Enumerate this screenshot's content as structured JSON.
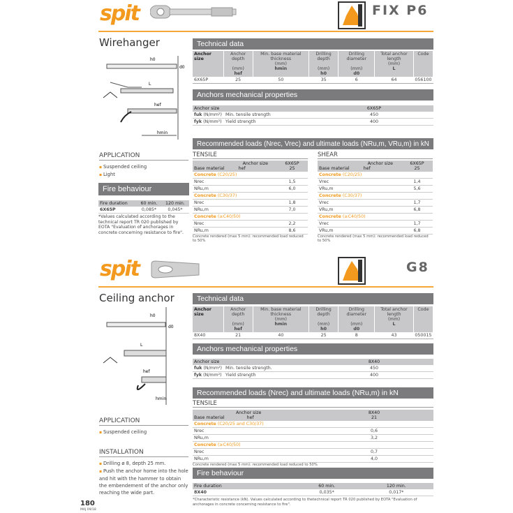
{
  "page_number": "180",
  "edition": "MAJ 09/18",
  "brand": "spit",
  "colors": {
    "accent": "#f39a1e",
    "bar": "#7b7b7d",
    "header_row": "#c8c8ca"
  },
  "products": [
    {
      "name": "FIX P6",
      "title": "Wirehanger",
      "technical": {
        "heading": "Technical data",
        "columns": [
          {
            "label": "Anchor size",
            "unit": "",
            "symbol": ""
          },
          {
            "label": "Anchor depth",
            "unit": "(mm)",
            "symbol": "hef"
          },
          {
            "label": "Min. base material thickness",
            "unit": "(mm)",
            "symbol": "hmin"
          },
          {
            "label": "Drilling depth",
            "unit": "(mm)",
            "symbol": "h0"
          },
          {
            "label": "Drilling diameter",
            "unit": "(mm)",
            "symbol": "d0"
          },
          {
            "label": "Total anchor length",
            "unit": "(mm)",
            "symbol": "L"
          },
          {
            "label": "Code",
            "unit": "",
            "symbol": ""
          }
        ],
        "row": [
          "6X65P",
          "25",
          "50",
          "35",
          "6",
          "64",
          "056100"
        ]
      },
      "mechanical": {
        "heading": "Anchors mechanical properties",
        "size_label": "Anchor size",
        "size": "6X65P",
        "rows": [
          {
            "sym": "fuk",
            "unit": "(N/mm²)",
            "label": "Min. tensile strength",
            "value": "450"
          },
          {
            "sym": "fyk",
            "unit": "(N/mm²)",
            "label": "Yield strength",
            "value": "400"
          }
        ]
      },
      "loads": {
        "heading": "Recommended loads (Nrec, Vrec) and ultimate loads (NRu,m, VRu,m) in kN",
        "tensile": {
          "title": "TENSILE",
          "anchor_size": "Anchor size",
          "base_material": "Base material",
          "hef": "hef",
          "size": "6X65P",
          "depth": "25",
          "groups": [
            {
              "concrete": "Concrete",
              "class": "(C20/25)",
              "rows": [
                [
                  "Nrec",
                  "1,5"
                ],
                [
                  "NRu,m",
                  "6,0"
                ]
              ]
            },
            {
              "concrete": "Concrete",
              "class": "(C30/37)",
              "rows": [
                [
                  "Nrec",
                  "1,8"
                ],
                [
                  "NRu,m",
                  "7,0"
                ]
              ]
            },
            {
              "concrete": "Concrete",
              "class": "(≥C40/50)",
              "rows": [
                [
                  "Nrec",
                  "2,2"
                ],
                [
                  "NRu,m",
                  "8,6"
                ]
              ]
            }
          ],
          "note": "Concrete rendered (max 5 mm): recommended load reduced to 50%"
        },
        "shear": {
          "title": "SHEAR",
          "anchor_size": "Anchor size",
          "base_material": "Base material",
          "hef": "hef",
          "size": "6X65P",
          "depth": "25",
          "groups": [
            {
              "concrete": "Concrete",
              "class": "(C20/25)",
              "rows": [
                [
                  "Vrec",
                  "1,4"
                ],
                [
                  "VRu,m",
                  "5,6"
                ]
              ]
            },
            {
              "concrete": "Concrete",
              "class": "(C30/37)",
              "rows": [
                [
                  "Vrec",
                  "1,7"
                ],
                [
                  "VRu,m",
                  "6,8"
                ]
              ]
            },
            {
              "concrete": "Concrete",
              "class": "(≥C40/50)",
              "rows": [
                [
                  "Vrec",
                  "1,7"
                ],
                [
                  "VRu,m",
                  "6,8"
                ]
              ]
            }
          ],
          "note": "Concrete rendered (max 5 mm): recommended load reduced to 50%"
        }
      },
      "application": {
        "title": "APPLICATION",
        "items": [
          "Suspended ceiling",
          "Light"
        ]
      },
      "fire": {
        "heading": "Fire behaviour",
        "cols": [
          "Fire duration",
          "60 min.",
          "120 min."
        ],
        "row": [
          "6X65P",
          "0,085*",
          "0,045*"
        ],
        "note": "*Values calculated according to the technical report TR 020 published by EOTA \"Evaluation of anchorages in concrete concerning resistance to fire\"."
      },
      "diagram_labels": [
        "h0",
        "d0",
        "L",
        "hef",
        "hmin"
      ]
    },
    {
      "name": "G8",
      "title": "Ceiling anchor",
      "technical": {
        "heading": "Technical data",
        "row": [
          "8X40",
          "21",
          "40",
          "25",
          "8",
          "43",
          "050015"
        ]
      },
      "mechanical": {
        "heading": "Anchors mechanical properties",
        "size_label": "Anchor size",
        "size": "8X40",
        "rows": [
          {
            "sym": "fuk",
            "unit": "(N/mm²)",
            "label": "Min. tensile strength.",
            "value": "450"
          },
          {
            "sym": "fyk",
            "unit": "(N/mm²)",
            "label": "Yield strength",
            "value": "400"
          }
        ]
      },
      "loads": {
        "heading": "Recommended loads (Nrec) and ultimate loads (NRu,m) in kN",
        "tensile": {
          "title": "TENSILE",
          "anchor_size": "Anchor size",
          "base_material": "Base material",
          "hef": "hef",
          "size": "8X40",
          "depth": "21",
          "groups": [
            {
              "concrete": "Concrete",
              "class": "(C20/25 and C30/37)",
              "rows": [
                [
                  "Nrec",
                  "0,6"
                ],
                [
                  "NRu,m",
                  "3,2"
                ]
              ]
            },
            {
              "concrete": "Concrete",
              "class": "(≥C40/50)",
              "rows": [
                [
                  "Nrec",
                  "0,7"
                ],
                [
                  "NRu,m",
                  "4,0"
                ]
              ]
            }
          ],
          "note": "Concrete rendered (max 5 mm): recommended load reduced to 50%"
        }
      },
      "application": {
        "title": "APPLICATION",
        "items": [
          "Suspended ceiling"
        ]
      },
      "installation": {
        "title": "INSTALLATION",
        "items": [
          "Drilling ø 8, depth 25 mm.",
          "Push the anchor home into the hole and hit with the hammer to obtain the embendement of the anchor only reaching the wide part."
        ]
      },
      "fire": {
        "heading": "Fire behaviour",
        "cols": [
          "Fire duration",
          "60 min.",
          "120 min."
        ],
        "row": [
          "8X40",
          "0,035*",
          "0,017*"
        ],
        "note": "*Characteristic resistance (kN). Values calculated according to thetechnical report TR 020 published by EOTA \"Evaluation of anchorages in concrete concerning resistance to fire\"."
      },
      "diagram_labels": [
        "h0",
        "d0",
        "L",
        "hef",
        "hmin"
      ]
    }
  ]
}
